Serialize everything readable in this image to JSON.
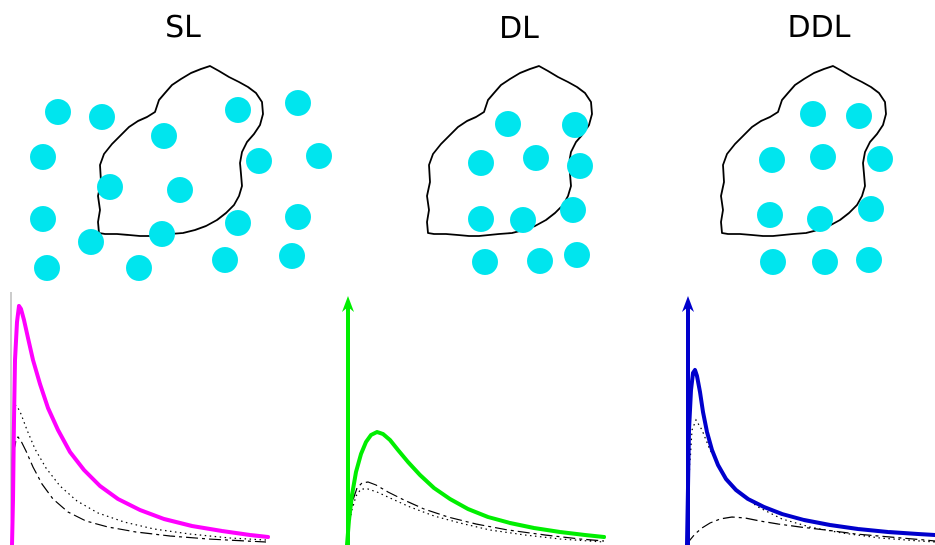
{
  "figure": {
    "panels": [
      {
        "id": "sl",
        "title": "SL",
        "curve_color": "#ff00ff",
        "disc_color": "#00e5ee"
      },
      {
        "id": "dl",
        "title": "DL",
        "curve_color": "#00ee00",
        "disc_color": "#00e5ee"
      },
      {
        "id": "ddl",
        "title": "DDL",
        "curve_color": "#0000cc",
        "disc_color": "#00e5ee"
      }
    ]
  }
}
